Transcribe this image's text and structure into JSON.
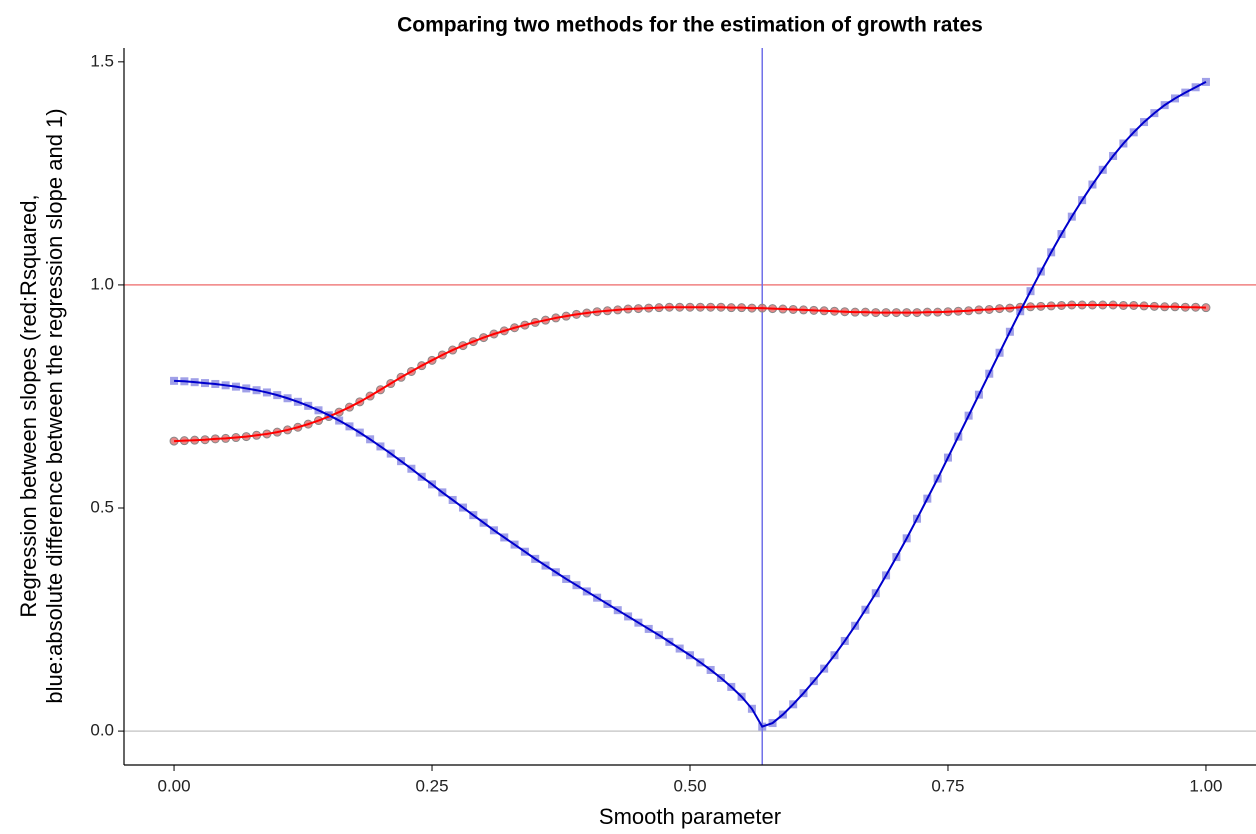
{
  "chart_data": {
    "type": "line",
    "title": "Comparing two methods for the estimation of growth rates",
    "x_label": "Smooth parameter",
    "y_label": [
      "Regression between slopes (red:Rsquared,",
      "blue:absolute difference between the  regression slope and 1)"
    ],
    "x": [
      0,
      0.01,
      0.02,
      0.03,
      0.04,
      0.05,
      0.06,
      0.07,
      0.08,
      0.09,
      0.1,
      0.11,
      0.12,
      0.13,
      0.14,
      0.15,
      0.16,
      0.17,
      0.18,
      0.19,
      0.2,
      0.21,
      0.22,
      0.23,
      0.24,
      0.25,
      0.26,
      0.27,
      0.28,
      0.29,
      0.3,
      0.31,
      0.32,
      0.33,
      0.34,
      0.35,
      0.36,
      0.37,
      0.38,
      0.39,
      0.4,
      0.41,
      0.42,
      0.43,
      0.44,
      0.45,
      0.46,
      0.47,
      0.48,
      0.49,
      0.5,
      0.51,
      0.52,
      0.53,
      0.54,
      0.55,
      0.56,
      0.57,
      0.58,
      0.59,
      0.6,
      0.61,
      0.62,
      0.63,
      0.64,
      0.65,
      0.66,
      0.67,
      0.68,
      0.69,
      0.7,
      0.71,
      0.72,
      0.73,
      0.74,
      0.75,
      0.76,
      0.77,
      0.78,
      0.79,
      0.8,
      0.81,
      0.82,
      0.83,
      0.84,
      0.85,
      0.86,
      0.87,
      0.88,
      0.89,
      0.9,
      0.91,
      0.92,
      0.93,
      0.94,
      0.95,
      0.96,
      0.97,
      0.98,
      0.99,
      1
    ],
    "series": [
      {
        "color": "#ff0000",
        "marker": "circle",
        "marker_color": "#e06060",
        "values": [
          0.65,
          0.651,
          0.652,
          0.653,
          0.655,
          0.656,
          0.658,
          0.66,
          0.663,
          0.666,
          0.67,
          0.675,
          0.681,
          0.688,
          0.696,
          0.705,
          0.715,
          0.726,
          0.738,
          0.751,
          0.765,
          0.779,
          0.793,
          0.806,
          0.819,
          0.831,
          0.843,
          0.854,
          0.864,
          0.873,
          0.882,
          0.89,
          0.897,
          0.904,
          0.91,
          0.916,
          0.921,
          0.926,
          0.93,
          0.934,
          0.937,
          0.94,
          0.942,
          0.944,
          0.946,
          0.947,
          0.948,
          0.949,
          0.95,
          0.95,
          0.95,
          0.95,
          0.95,
          0.95,
          0.949,
          0.949,
          0.948,
          0.948,
          0.947,
          0.946,
          0.945,
          0.944,
          0.943,
          0.942,
          0.941,
          0.94,
          0.939,
          0.939,
          0.938,
          0.938,
          0.938,
          0.938,
          0.938,
          0.939,
          0.939,
          0.94,
          0.941,
          0.942,
          0.944,
          0.945,
          0.947,
          0.948,
          0.95,
          0.951,
          0.952,
          0.953,
          0.954,
          0.955,
          0.955,
          0.955,
          0.955,
          0.955,
          0.954,
          0.954,
          0.953,
          0.952,
          0.951,
          0.951,
          0.95,
          0.95,
          0.949
        ]
      },
      {
        "color": "#0000cc",
        "marker": "square",
        "marker_color": "#8080e0",
        "values": [
          0.785,
          0.784,
          0.782,
          0.78,
          0.778,
          0.775,
          0.772,
          0.768,
          0.764,
          0.759,
          0.753,
          0.746,
          0.738,
          0.729,
          0.719,
          0.708,
          0.696,
          0.683,
          0.669,
          0.654,
          0.638,
          0.622,
          0.605,
          0.588,
          0.57,
          0.553,
          0.535,
          0.518,
          0.501,
          0.484,
          0.467,
          0.45,
          0.434,
          0.418,
          0.402,
          0.386,
          0.371,
          0.356,
          0.341,
          0.327,
          0.313,
          0.299,
          0.285,
          0.271,
          0.257,
          0.243,
          0.229,
          0.215,
          0.2,
          0.185,
          0.17,
          0.154,
          0.137,
          0.119,
          0.099,
          0.077,
          0.05,
          0.01,
          0.018,
          0.037,
          0.06,
          0.085,
          0.112,
          0.14,
          0.17,
          0.202,
          0.236,
          0.272,
          0.309,
          0.349,
          0.39,
          0.432,
          0.476,
          0.521,
          0.566,
          0.613,
          0.66,
          0.707,
          0.754,
          0.801,
          0.848,
          0.895,
          0.941,
          0.986,
          1.03,
          1.073,
          1.114,
          1.153,
          1.19,
          1.225,
          1.258,
          1.289,
          1.317,
          1.342,
          1.365,
          1.385,
          1.403,
          1.418,
          1.431,
          1.443,
          1.455
        ]
      }
    ],
    "hlines": [
      {
        "value": 1,
        "color": "#f08080"
      },
      {
        "value": 0,
        "color": "#cccccc"
      }
    ],
    "vlines": [
      {
        "value": 0.57,
        "color": "#7070e8"
      }
    ],
    "xlim": [
      -0.0485,
      1.0485
    ],
    "ylim": [
      -0.076,
      1.531
    ],
    "xticks": [
      {
        "value": 0,
        "label": "0.00"
      },
      {
        "value": 0.25,
        "label": "0.25"
      },
      {
        "value": 0.5,
        "label": "0.50"
      },
      {
        "value": 0.75,
        "label": "0.75"
      },
      {
        "value": 1,
        "label": "1.00"
      }
    ],
    "yticks": [
      {
        "value": 0,
        "label": "0.0"
      },
      {
        "value": 0.5,
        "label": "0.5"
      },
      {
        "value": 1,
        "label": "1.0"
      },
      {
        "value": 1.5,
        "label": "1.5"
      }
    ],
    "grid": false
  }
}
